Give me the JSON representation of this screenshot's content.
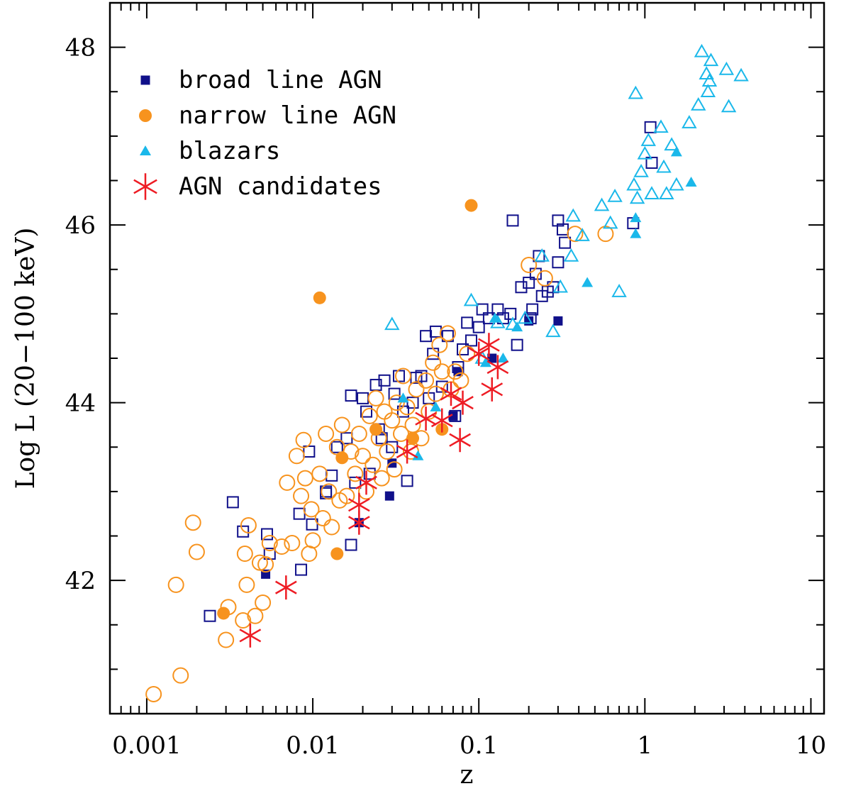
{
  "chart_data": {
    "type": "scatter",
    "title": "",
    "xlabel": "z",
    "ylabel": "Log L (20−100 keV)",
    "xscale": "log",
    "xlim": [
      0.0006,
      12
    ],
    "ylim": [
      40.5,
      48.5
    ],
    "x_tick_labels": [
      "0.001",
      "0.01",
      "0.1",
      "1",
      "10"
    ],
    "x_tick_values": [
      0.001,
      0.01,
      0.1,
      1,
      10
    ],
    "y_tick_labels": [
      "42",
      "44",
      "46",
      "48"
    ],
    "y_tick_values": [
      42,
      44,
      46,
      48
    ],
    "legend_position": "top-left",
    "colors": {
      "broad": "#10108a",
      "narrow": "#f7931e",
      "blazar": "#1ab8ea",
      "candidate": "#ee1c24"
    },
    "legend": [
      {
        "label": "broad line AGN",
        "marker": "square-filled",
        "color": "#10108a"
      },
      {
        "label": "narrow line AGN",
        "marker": "circle-filled",
        "color": "#f7931e"
      },
      {
        "label": "blazars",
        "marker": "triangle-filled",
        "color": "#1ab8ea"
      },
      {
        "label": "AGN candidates",
        "marker": "star",
        "color": "#ee1c24"
      }
    ],
    "series": [
      {
        "name": "broad line AGN (open)",
        "marker": "square-open",
        "color": "#10108a",
        "points": [
          [
            0.0024,
            41.6
          ],
          [
            0.0033,
            42.88
          ],
          [
            0.0038,
            42.55
          ],
          [
            0.0053,
            42.52
          ],
          [
            0.0055,
            42.3
          ],
          [
            0.0085,
            42.12
          ],
          [
            0.0083,
            42.75
          ],
          [
            0.0095,
            43.45
          ],
          [
            0.0099,
            42.63
          ],
          [
            0.012,
            42.98
          ],
          [
            0.013,
            43.18
          ],
          [
            0.014,
            43.5
          ],
          [
            0.016,
            43.6
          ],
          [
            0.017,
            42.4
          ],
          [
            0.017,
            44.08
          ],
          [
            0.018,
            43.1
          ],
          [
            0.02,
            44.05
          ],
          [
            0.021,
            43.9
          ],
          [
            0.022,
            43.2
          ],
          [
            0.024,
            44.2
          ],
          [
            0.025,
            43.7
          ],
          [
            0.027,
            44.25
          ],
          [
            0.03,
            43.5
          ],
          [
            0.031,
            44.1
          ],
          [
            0.033,
            44.3
          ],
          [
            0.035,
            43.9
          ],
          [
            0.037,
            43.12
          ],
          [
            0.04,
            44.0
          ],
          [
            0.042,
            44.28
          ],
          [
            0.045,
            44.3
          ],
          [
            0.048,
            44.75
          ],
          [
            0.05,
            44.05
          ],
          [
            0.053,
            44.55
          ],
          [
            0.055,
            44.8
          ],
          [
            0.06,
            44.18
          ],
          [
            0.065,
            44.75
          ],
          [
            0.072,
            43.85
          ],
          [
            0.075,
            44.4
          ],
          [
            0.08,
            44.6
          ],
          [
            0.085,
            44.9
          ],
          [
            0.09,
            44.7
          ],
          [
            0.1,
            44.85
          ],
          [
            0.105,
            45.05
          ],
          [
            0.115,
            44.95
          ],
          [
            0.13,
            45.05
          ],
          [
            0.14,
            44.95
          ],
          [
            0.155,
            45.0
          ],
          [
            0.16,
            46.05
          ],
          [
            0.17,
            44.65
          ],
          [
            0.18,
            45.3
          ],
          [
            0.2,
            45.35
          ],
          [
            0.205,
            44.95
          ],
          [
            0.21,
            45.05
          ],
          [
            0.22,
            45.45
          ],
          [
            0.23,
            45.65
          ],
          [
            0.24,
            45.2
          ],
          [
            0.26,
            45.25
          ],
          [
            0.28,
            45.3
          ],
          [
            0.3,
            45.58
          ],
          [
            0.3,
            46.05
          ],
          [
            0.32,
            45.95
          ],
          [
            0.33,
            45.8
          ],
          [
            0.85,
            46.02
          ],
          [
            1.08,
            47.1
          ],
          [
            1.1,
            46.7
          ],
          [
            0.012,
            43.0
          ],
          [
            0.026,
            43.6
          ]
        ]
      },
      {
        "name": "broad line AGN",
        "marker": "square-filled",
        "color": "#10108a",
        "points": [
          [
            0.0052,
            42.07
          ],
          [
            0.019,
            42.65
          ],
          [
            0.029,
            42.95
          ],
          [
            0.03,
            43.32
          ],
          [
            0.07,
            43.85
          ],
          [
            0.075,
            44.35
          ],
          [
            0.12,
            44.5
          ],
          [
            0.2,
            44.92
          ],
          [
            0.3,
            44.92
          ]
        ]
      },
      {
        "name": "narrow line AGN (open)",
        "marker": "circle-open",
        "color": "#f7931e",
        "points": [
          [
            0.0011,
            40.72
          ],
          [
            0.0016,
            40.93
          ],
          [
            0.0015,
            41.95
          ],
          [
            0.0019,
            42.65
          ],
          [
            0.002,
            42.32
          ],
          [
            0.003,
            41.33
          ],
          [
            0.0031,
            41.7
          ],
          [
            0.0038,
            41.55
          ],
          [
            0.004,
            41.95
          ],
          [
            0.0039,
            42.3
          ],
          [
            0.0041,
            42.62
          ],
          [
            0.0045,
            41.6
          ],
          [
            0.0048,
            42.2
          ],
          [
            0.005,
            41.75
          ],
          [
            0.0052,
            42.18
          ],
          [
            0.0055,
            42.42
          ],
          [
            0.0065,
            42.38
          ],
          [
            0.007,
            43.1
          ],
          [
            0.0075,
            42.42
          ],
          [
            0.008,
            43.4
          ],
          [
            0.0085,
            42.95
          ],
          [
            0.0088,
            43.58
          ],
          [
            0.009,
            43.15
          ],
          [
            0.0095,
            42.3
          ],
          [
            0.0098,
            42.8
          ],
          [
            0.01,
            42.45
          ],
          [
            0.011,
            43.2
          ],
          [
            0.0115,
            42.7
          ],
          [
            0.012,
            43.65
          ],
          [
            0.0125,
            43.0
          ],
          [
            0.013,
            42.6
          ],
          [
            0.014,
            43.5
          ],
          [
            0.0145,
            42.9
          ],
          [
            0.015,
            43.75
          ],
          [
            0.016,
            42.95
          ],
          [
            0.017,
            43.45
          ],
          [
            0.018,
            43.2
          ],
          [
            0.019,
            43.65
          ],
          [
            0.02,
            43.4
          ],
          [
            0.021,
            43.0
          ],
          [
            0.022,
            43.85
          ],
          [
            0.023,
            43.3
          ],
          [
            0.024,
            44.05
          ],
          [
            0.025,
            43.6
          ],
          [
            0.026,
            43.15
          ],
          [
            0.027,
            43.9
          ],
          [
            0.028,
            43.45
          ],
          [
            0.03,
            43.8
          ],
          [
            0.031,
            43.25
          ],
          [
            0.032,
            44.0
          ],
          [
            0.034,
            43.65
          ],
          [
            0.035,
            44.3
          ],
          [
            0.037,
            43.95
          ],
          [
            0.039,
            43.45
          ],
          [
            0.04,
            43.75
          ],
          [
            0.042,
            44.15
          ],
          [
            0.045,
            43.6
          ],
          [
            0.048,
            44.25
          ],
          [
            0.05,
            43.9
          ],
          [
            0.053,
            44.45
          ],
          [
            0.055,
            44.1
          ],
          [
            0.058,
            44.65
          ],
          [
            0.06,
            44.35
          ],
          [
            0.065,
            44.78
          ],
          [
            0.068,
            44.15
          ],
          [
            0.072,
            44.35
          ],
          [
            0.078,
            44.25
          ],
          [
            0.085,
            44.55
          ],
          [
            0.2,
            45.55
          ],
          [
            0.25,
            45.4
          ],
          [
            0.38,
            45.9
          ],
          [
            0.58,
            45.9
          ]
        ]
      },
      {
        "name": "narrow line AGN",
        "marker": "circle-filled",
        "color": "#f7931e",
        "points": [
          [
            0.0029,
            41.63
          ],
          [
            0.011,
            45.18
          ],
          [
            0.014,
            42.3
          ],
          [
            0.015,
            43.38
          ],
          [
            0.024,
            43.7
          ],
          [
            0.04,
            43.6
          ],
          [
            0.06,
            43.7
          ],
          [
            0.09,
            46.22
          ]
        ]
      },
      {
        "name": "blazars (open)",
        "marker": "triangle-open",
        "color": "#1ab8ea",
        "points": [
          [
            0.03,
            44.88
          ],
          [
            0.09,
            45.15
          ],
          [
            0.105,
            44.5
          ],
          [
            0.13,
            44.9
          ],
          [
            0.16,
            44.88
          ],
          [
            0.19,
            44.95
          ],
          [
            0.24,
            45.65
          ],
          [
            0.28,
            44.8
          ],
          [
            0.31,
            45.3
          ],
          [
            0.36,
            45.65
          ],
          [
            0.37,
            46.1
          ],
          [
            0.42,
            45.88
          ],
          [
            0.55,
            46.22
          ],
          [
            0.62,
            46.02
          ],
          [
            0.66,
            46.32
          ],
          [
            0.7,
            45.25
          ],
          [
            0.86,
            46.45
          ],
          [
            0.88,
            47.48
          ],
          [
            0.9,
            46.3
          ],
          [
            0.95,
            46.6
          ],
          [
            1.0,
            46.8
          ],
          [
            1.05,
            46.95
          ],
          [
            1.1,
            46.35
          ],
          [
            1.25,
            47.1
          ],
          [
            1.3,
            46.65
          ],
          [
            1.35,
            46.35
          ],
          [
            1.45,
            46.9
          ],
          [
            1.55,
            46.45
          ],
          [
            1.85,
            47.15
          ],
          [
            2.1,
            47.35
          ],
          [
            2.2,
            47.95
          ],
          [
            2.35,
            47.7
          ],
          [
            2.4,
            47.5
          ],
          [
            2.5,
            47.85
          ],
          [
            2.45,
            47.62
          ],
          [
            3.1,
            47.75
          ],
          [
            3.2,
            47.33
          ],
          [
            3.8,
            47.68
          ]
        ]
      },
      {
        "name": "blazars",
        "marker": "triangle-filled",
        "color": "#1ab8ea",
        "points": [
          [
            0.035,
            44.05
          ],
          [
            0.043,
            43.4
          ],
          [
            0.055,
            43.95
          ],
          [
            0.11,
            44.45
          ],
          [
            0.125,
            44.95
          ],
          [
            0.14,
            44.5
          ],
          [
            0.17,
            44.85
          ],
          [
            0.45,
            45.35
          ],
          [
            0.88,
            46.08
          ],
          [
            0.88,
            45.9
          ],
          [
            1.55,
            46.82
          ],
          [
            1.9,
            46.48
          ]
        ]
      },
      {
        "name": "AGN candidates",
        "marker": "star",
        "color": "#ee1c24",
        "points": [
          [
            0.0042,
            41.38
          ],
          [
            0.0069,
            41.92
          ],
          [
            0.019,
            42.65
          ],
          [
            0.019,
            42.85
          ],
          [
            0.021,
            43.1
          ],
          [
            0.037,
            43.45
          ],
          [
            0.048,
            43.82
          ],
          [
            0.06,
            43.8
          ],
          [
            0.068,
            44.1
          ],
          [
            0.077,
            43.58
          ],
          [
            0.08,
            44.0
          ],
          [
            0.1,
            44.55
          ],
          [
            0.115,
            44.65
          ],
          [
            0.12,
            44.15
          ],
          [
            0.13,
            44.4
          ]
        ]
      }
    ]
  }
}
